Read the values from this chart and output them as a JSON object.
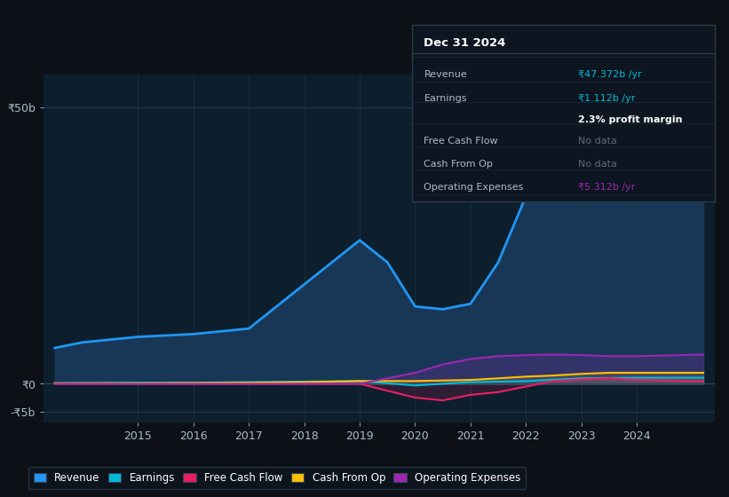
{
  "bg_color": "#0d1117",
  "plot_bg_color": "#0d1f2d",
  "grid_color": "#1e3a4a",
  "ylabel_50b": "₹50b",
  "ylabel_0": "₹0",
  "ylabel_neg5b": "-₹5b",
  "x_ticks": [
    2015,
    2016,
    2017,
    2018,
    2019,
    2020,
    2021,
    2022,
    2023,
    2024
  ],
  "revenue": {
    "x": [
      2013.5,
      2014,
      2015,
      2016,
      2017,
      2018,
      2019,
      2019.5,
      2020,
      2020.5,
      2021,
      2021.5,
      2022,
      2022.5,
      2023,
      2023.5,
      2024,
      2024.5,
      2025.2
    ],
    "y": [
      6.5,
      7.5,
      8.5,
      9.0,
      10.0,
      18.0,
      26.0,
      22.0,
      14.0,
      13.5,
      14.5,
      22.0,
      34.0,
      40.0,
      44.5,
      50.0,
      51.5,
      49.0,
      47.0
    ],
    "color": "#2196f3",
    "fill_color": "#1a3a5c",
    "label": "Revenue",
    "linewidth": 2.0
  },
  "earnings": {
    "x": [
      2013.5,
      2014,
      2015,
      2016,
      2017,
      2018,
      2019,
      2020,
      2021,
      2022,
      2023,
      2024,
      2025.2
    ],
    "y": [
      0.1,
      0.15,
      0.2,
      0.2,
      0.3,
      0.4,
      0.5,
      -0.3,
      0.3,
      0.5,
      1.0,
      1.1,
      1.1
    ],
    "color": "#00bcd4",
    "label": "Earnings",
    "linewidth": 1.5
  },
  "free_cash_flow": {
    "x": [
      2013.5,
      2014,
      2015,
      2016,
      2017,
      2018,
      2019,
      2020,
      2020.5,
      2021,
      2021.5,
      2022,
      2022.5,
      2023,
      2023.5,
      2024,
      2025.2
    ],
    "y": [
      0.0,
      0.0,
      0.0,
      0.0,
      0.0,
      0.0,
      0.0,
      -2.5,
      -3.0,
      -2.0,
      -1.5,
      -0.5,
      0.5,
      0.8,
      1.0,
      0.7,
      0.5
    ],
    "color": "#e91e63",
    "label": "Free Cash Flow",
    "linewidth": 1.5
  },
  "cash_from_op": {
    "x": [
      2013.5,
      2014,
      2015,
      2016,
      2017,
      2018,
      2019,
      2020,
      2020.5,
      2021,
      2021.5,
      2022,
      2022.5,
      2023,
      2023.5,
      2024,
      2025.2
    ],
    "y": [
      0.1,
      0.1,
      0.1,
      0.15,
      0.2,
      0.3,
      0.5,
      0.5,
      0.6,
      0.7,
      1.0,
      1.3,
      1.5,
      1.8,
      2.0,
      2.0,
      2.0
    ],
    "color": "#ffc107",
    "label": "Cash From Op",
    "linewidth": 1.5
  },
  "operating_expenses": {
    "x": [
      2013.5,
      2014,
      2015,
      2016,
      2017,
      2018,
      2019,
      2020,
      2020.5,
      2021,
      2021.5,
      2022,
      2022.5,
      2023,
      2023.5,
      2024,
      2025.2
    ],
    "y": [
      0.0,
      0.0,
      0.0,
      0.0,
      0.0,
      0.0,
      0.0,
      2.0,
      3.5,
      4.5,
      5.0,
      5.2,
      5.3,
      5.2,
      5.0,
      5.0,
      5.3
    ],
    "color": "#9c27b0",
    "label": "Operating Expenses",
    "linewidth": 1.5
  },
  "info_box": {
    "title": "Dec 31 2024",
    "rows": [
      {
        "label": "Revenue",
        "value": "₹47.372b /yr",
        "value_color": "#00bcd4",
        "bold": false
      },
      {
        "label": "Earnings",
        "value": "₹1.112b /yr",
        "value_color": "#00bcd4",
        "bold": false
      },
      {
        "label": "",
        "value": "2.3% profit margin",
        "value_color": "#ffffff",
        "bold": true
      },
      {
        "label": "Free Cash Flow",
        "value": "No data",
        "value_color": "#5a6a7a",
        "bold": false
      },
      {
        "label": "Cash From Op",
        "value": "No data",
        "value_color": "#5a6a7a",
        "bold": false
      },
      {
        "label": "Operating Expenses",
        "value": "₹5.312b /yr",
        "value_color": "#9c27b0",
        "bold": false
      }
    ]
  },
  "xlim": [
    2013.3,
    2025.4
  ],
  "ylim": [
    -7,
    56
  ],
  "figsize": [
    8.21,
    5.6
  ],
  "dpi": 100
}
